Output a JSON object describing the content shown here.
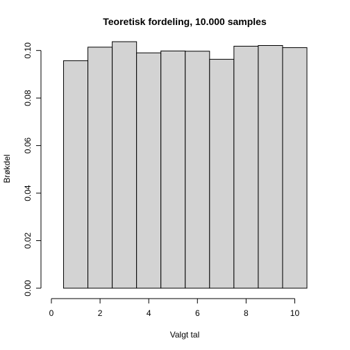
{
  "chart_data": {
    "type": "bar",
    "title": "Teoretisk fordeling, 10.000 samples",
    "xlabel": "Valgt tal",
    "ylabel": "Brøkdel",
    "bins": [
      {
        "x_start": 0.5,
        "x_end": 1.5,
        "value": 0.0957
      },
      {
        "x_start": 1.5,
        "x_end": 2.5,
        "value": 0.1014
      },
      {
        "x_start": 2.5,
        "x_end": 3.5,
        "value": 0.1037
      },
      {
        "x_start": 3.5,
        "x_end": 4.5,
        "value": 0.099
      },
      {
        "x_start": 4.5,
        "x_end": 5.5,
        "value": 0.0998
      },
      {
        "x_start": 5.5,
        "x_end": 6.5,
        "value": 0.0997
      },
      {
        "x_start": 6.5,
        "x_end": 7.5,
        "value": 0.0963
      },
      {
        "x_start": 7.5,
        "x_end": 8.5,
        "value": 0.1018
      },
      {
        "x_start": 8.5,
        "x_end": 9.5,
        "value": 0.1021
      },
      {
        "x_start": 9.5,
        "x_end": 10.5,
        "value": 0.1012
      }
    ],
    "xlim": [
      0,
      10.5
    ],
    "ylim": [
      0,
      0.104
    ],
    "x_ticks": [
      0,
      2,
      4,
      6,
      8,
      10
    ],
    "x_tick_labels": [
      "0",
      "2",
      "4",
      "6",
      "8",
      "10"
    ],
    "y_ticks": [
      0,
      0.02,
      0.04,
      0.06,
      0.08,
      0.1
    ],
    "y_tick_labels": [
      "0.00",
      "0.02",
      "0.04",
      "0.06",
      "0.08",
      "0.10"
    ],
    "grid": false,
    "bar_fill_color": "#d3d3d3",
    "bar_stroke_color": "#000000"
  }
}
